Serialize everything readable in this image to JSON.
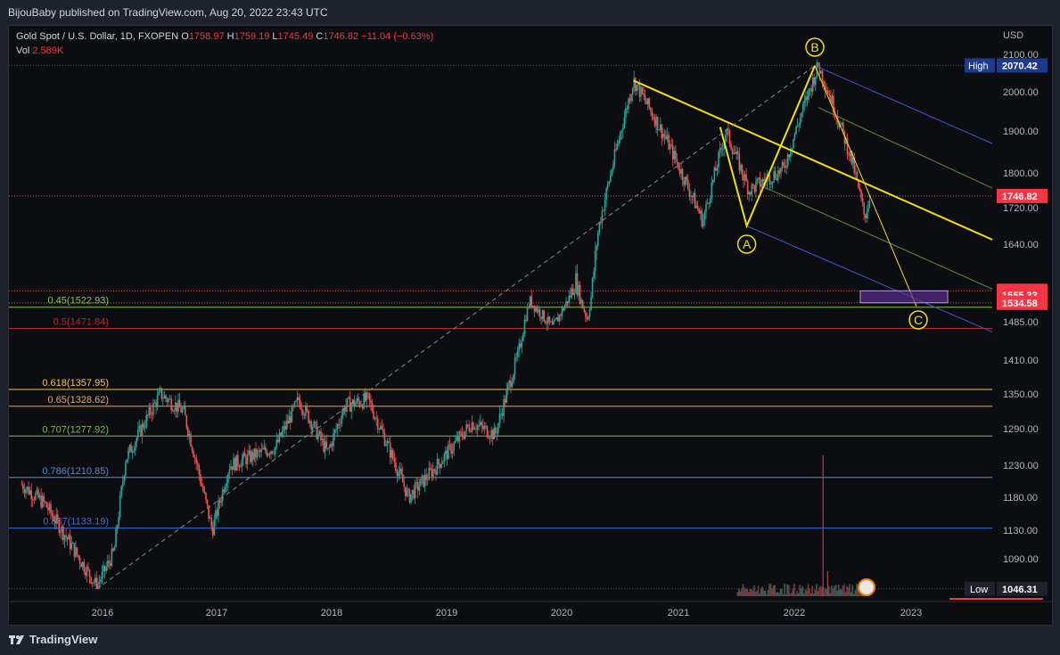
{
  "header": {
    "published": "BijouBaby published on TradingView.com, Aug 20, 2022 23:43 UTC"
  },
  "legend": {
    "symbol": "Gold Spot / U.S. Dollar, 1D, FXOPEN",
    "o_label": "O",
    "o_value": "1758.97",
    "h_label": "H",
    "h_value": "1759.19",
    "l_label": "L",
    "l_value": "1745.49",
    "c_label": "C",
    "c_value": "1746.82",
    "change": "−11.04 (−0.63%)",
    "vol_label": "Vol",
    "vol_value": "2.589K"
  },
  "price_axis": {
    "currency": "USD",
    "ticks": [
      "2100.00",
      "2000.00",
      "1900.00",
      "1800.00",
      "1720.00",
      "1640.00",
      "1485.00",
      "1410.00",
      "1350.00",
      "1290.00",
      "1230.00",
      "1180.00",
      "1130.00",
      "1090.00"
    ],
    "labels": {
      "high_label": "High",
      "high_value": "2070.42",
      "current": "1746.82",
      "level1": "1561.93",
      "level2": "1555.33",
      "level3": "1534.58",
      "low_label": "Low",
      "low_value": "1046.31"
    }
  },
  "time_axis": {
    "ticks": [
      "2016",
      "2017",
      "2018",
      "2019",
      "2020",
      "2021",
      "2022",
      "2023"
    ]
  },
  "fib_levels": [
    {
      "label": "0.45(1522.93)",
      "color": "#8bc34a"
    },
    {
      "label": "0.5(1471.84)",
      "color": "#b22833"
    },
    {
      "label": "0.618(1357.95)",
      "color": "#f7c548"
    },
    {
      "label": "0.65(1328.62)",
      "color": "#f5a54a"
    },
    {
      "label": "0.707(1277.92)",
      "color": "#7cbb56"
    },
    {
      "label": "0.786(1210.85)",
      "color": "#4a90e2"
    },
    {
      "label": "0.887(1133.19)",
      "color": "#3d6fd9"
    }
  ],
  "wave_labels": {
    "a": "A",
    "b": "B",
    "c": "C"
  },
  "colors": {
    "up": "#26a69a",
    "down": "#ef5350",
    "wave": "#f5e65b",
    "channel_blue": "#3a5bd9",
    "channel_green": "#5a8f3c",
    "box": "#6b3fa0"
  },
  "footer": {
    "brand": "TradingView"
  }
}
